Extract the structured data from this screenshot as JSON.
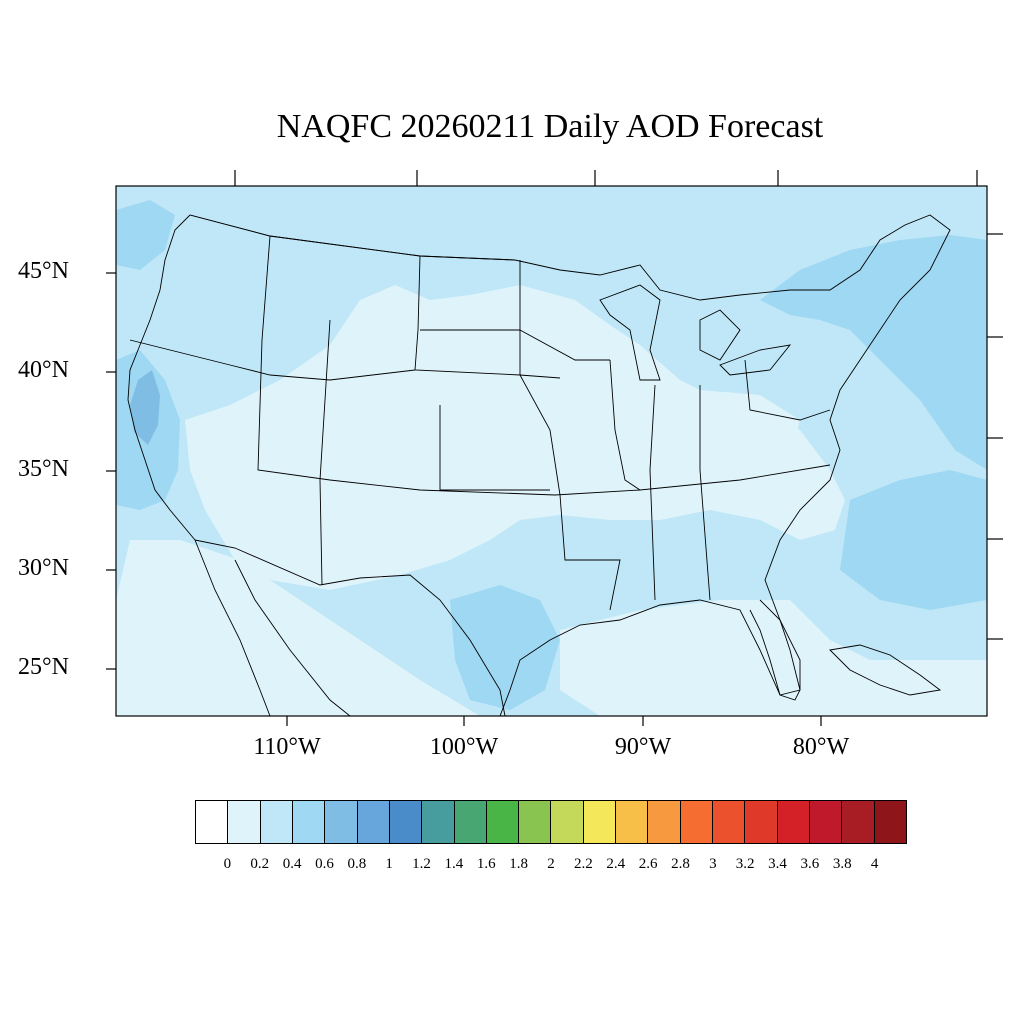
{
  "title": "NAQFC 20260211 Daily AOD Forecast",
  "lat_labels": [
    "45°N",
    "40°N",
    "35°N",
    "30°N",
    "25°N"
  ],
  "lon_labels": [
    "110°W",
    "100°W",
    "90°W",
    "80°W"
  ],
  "colorbar": {
    "labels": [
      "0",
      "0.2",
      "0.4",
      "0.6",
      "0.8",
      "1",
      "1.2",
      "1.4",
      "1.6",
      "1.8",
      "2",
      "2.2",
      "2.4",
      "2.6",
      "2.8",
      "3",
      "3.2",
      "3.4",
      "3.6",
      "3.8",
      "4"
    ],
    "colors": [
      "#ffffff",
      "#dff3fb",
      "#bfe7f7",
      "#9fd8f3",
      "#80bde5",
      "#66a6dc",
      "#4a8cca",
      "#479c9e",
      "#48a672",
      "#4ab547",
      "#88c44f",
      "#c4d85a",
      "#f5e75a",
      "#f8bf48",
      "#f7993e",
      "#f56d30",
      "#ec512d",
      "#df392a",
      "#d42027",
      "#c0192b",
      "#a81c23",
      "#8e1519"
    ]
  },
  "map_colors": {
    "aod_0_2": "#dff3fb",
    "aod_2_4": "#bfe7f7",
    "aod_4_6": "#9fd8f3",
    "aod_6_8": "#80bde5",
    "boundary": "#000000"
  },
  "map_data": {
    "region": "Contiguous United States",
    "lon_range": [
      -119,
      -71
    ],
    "lat_range": [
      22.5,
      49
    ],
    "lat_ticks": [
      45,
      40,
      35,
      30,
      25
    ],
    "lon_ticks": [
      -110,
      -100,
      -90,
      -80
    ]
  }
}
